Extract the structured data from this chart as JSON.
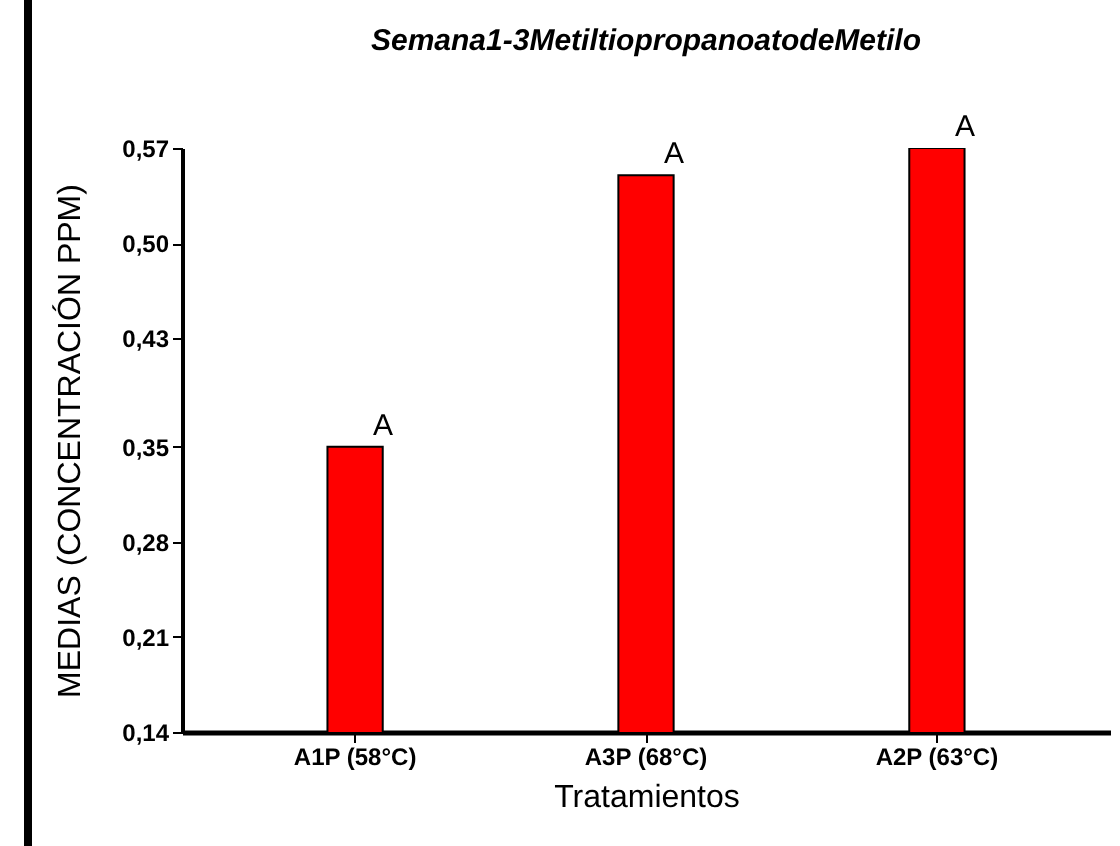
{
  "chart_data": {
    "type": "bar",
    "title": "Semana1-3MetiltiopropanoatodeMetilo",
    "xlabel": "Tratamientos",
    "ylabel": "MEDIAS (CONCENTRACIÓN PPM)",
    "categories": [
      "A1P (58°C)",
      "A3P (68°C)",
      "A2P (63°C)"
    ],
    "values": [
      0.35,
      0.55,
      0.57
    ],
    "color": "#ff0000",
    "ylim": [
      0.14,
      0.57
    ],
    "yticks": [
      {
        "value": 0.14,
        "label": "0,14"
      },
      {
        "value": 0.21,
        "label": "0,21"
      },
      {
        "value": 0.28,
        "label": "0,28"
      },
      {
        "value": 0.35,
        "label": "0,35"
      },
      {
        "value": 0.43,
        "label": "0,43"
      },
      {
        "value": 0.5,
        "label": "0,50"
      },
      {
        "value": 0.57,
        "label": "0,57"
      }
    ],
    "grid": false,
    "annotations": [
      {
        "text": "A",
        "x": "A1P (58°C)",
        "y": 0.35
      },
      {
        "text": "A",
        "x": "A3P (68°C)",
        "y": 0.55
      },
      {
        "text": "A",
        "x": "A2P (63°C)",
        "y": 0.57
      }
    ]
  }
}
